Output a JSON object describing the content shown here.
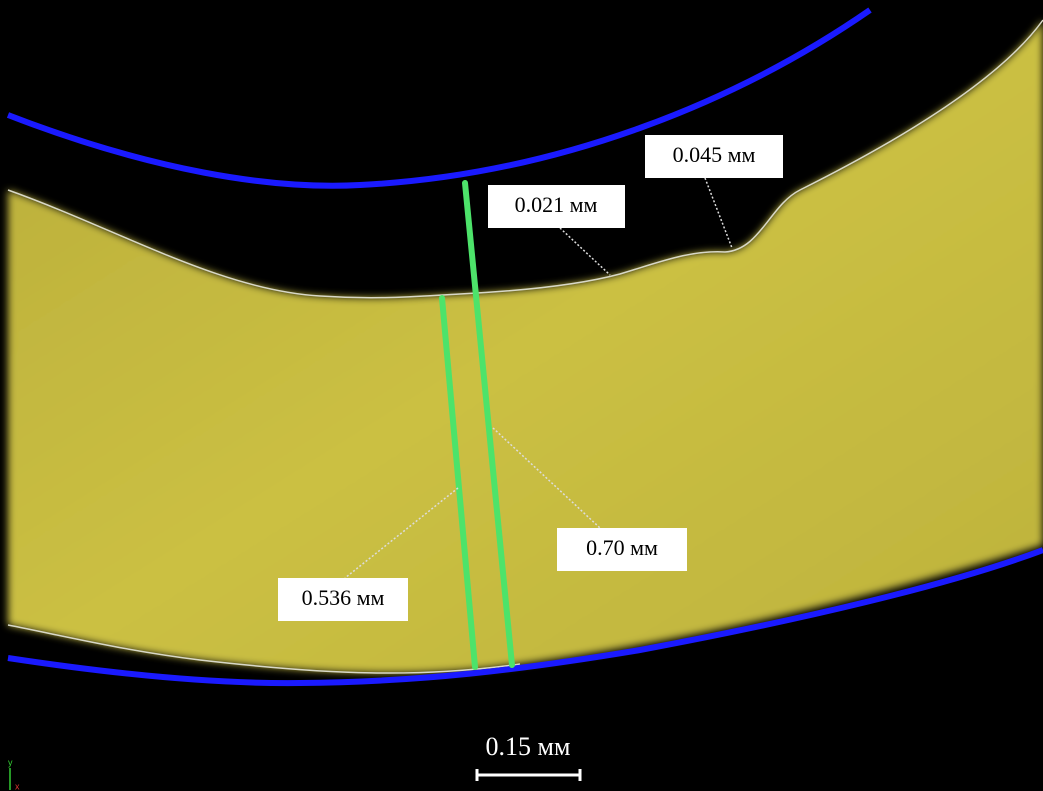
{
  "annotations": [
    {
      "label": "0.045 мм"
    },
    {
      "label": "0.021 мм"
    },
    {
      "label": "0.70 мм"
    },
    {
      "label": "0.536 мм"
    }
  ],
  "scale_bar": {
    "label": "0.15 мм"
  },
  "axes": {
    "y": "y",
    "x": "x"
  }
}
